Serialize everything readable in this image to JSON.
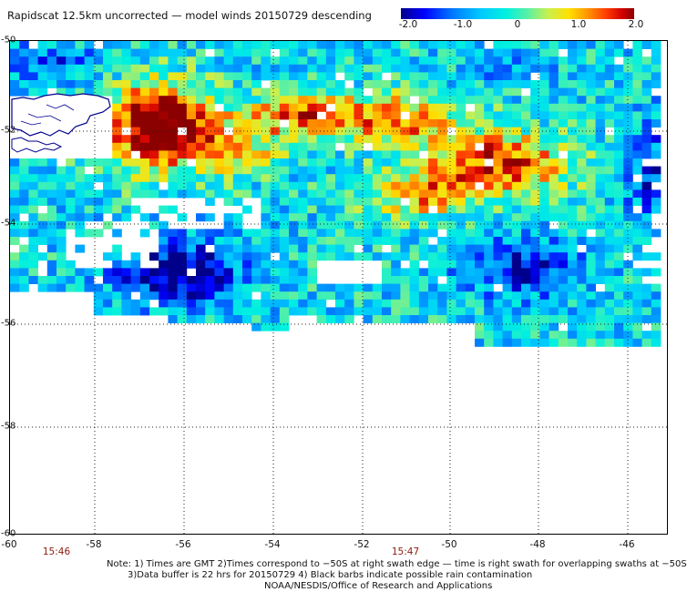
{
  "title": "Rapidscat 12.5km uncorrected — model winds 20150729 descending",
  "colorbar": {
    "min": -2.0,
    "max": 2.0,
    "tick_labels": [
      "-2.0",
      "-1.0",
      "0",
      "1.0",
      "2.0"
    ],
    "colors": [
      "#00008b",
      "#0000ff",
      "#0078ff",
      "#00c8ff",
      "#00f0e0",
      "#60f0a0",
      "#c8f050",
      "#ffe000",
      "#ff9600",
      "#ff3c00",
      "#d00000",
      "#8b0000"
    ]
  },
  "map": {
    "lat_labels": [
      "-50",
      "-52",
      "-54",
      "-56",
      "-58",
      "-60"
    ],
    "lon_labels": [
      "-60",
      "-58",
      "-56",
      "-54",
      "-52",
      "-50",
      "-48",
      "-46"
    ],
    "lat_range": [
      -60,
      -50
    ],
    "lon_range": [
      -60,
      -45.3
    ],
    "time_labels": [
      "15:46",
      "15:47"
    ],
    "grid_color": "#222222",
    "coastline_color": "#00008b",
    "land_feature": "Falkland Islands"
  },
  "notes": {
    "line1": "Note: 1) Times are GMT 2)Times correspond to −50S at right swath edge — time is right swath for overlapping swaths at −50S",
    "line2": "3)Data buffer is 22 hrs for 20150729 4) Black barbs indicate possible rain contamination",
    "line3": "NOAA/NESDIS/Office of Research and Applications"
  }
}
